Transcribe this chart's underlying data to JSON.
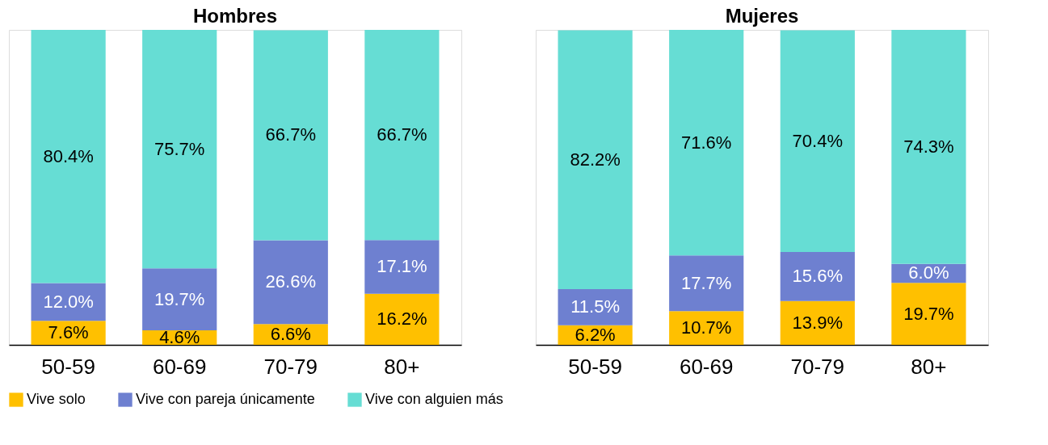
{
  "chart_data": [
    {
      "type": "bar",
      "title": "Hombres",
      "stacked": true,
      "legend": "bottom",
      "tick_labels": "x",
      "categories": [
        "50-59",
        "60-69",
        "70-79",
        "80+"
      ],
      "series": [
        {
          "name": "Vive solo",
          "color": "#ffc000",
          "values": [
            7.6,
            4.6,
            6.6,
            16.2
          ],
          "value_labels": [
            "7.6%",
            "4.6%",
            "6.6%",
            "16.2%"
          ]
        },
        {
          "name": "Vive con pareja únicamente",
          "color": "#6e80d0",
          "values": [
            12.0,
            19.7,
            26.6,
            17.1
          ],
          "value_labels": [
            "12.0%",
            "19.7%",
            "26.6%",
            "17.1%"
          ]
        },
        {
          "name": "Vive con alguien más",
          "color": "#66ddd4",
          "values": [
            80.4,
            75.7,
            66.7,
            66.7
          ],
          "value_labels": [
            "80.4%",
            "75.7%",
            "66.7%",
            "66.7%"
          ]
        }
      ]
    },
    {
      "type": "bar",
      "title": "Mujeres",
      "stacked": true,
      "legend": "bottom",
      "tick_labels": "x",
      "categories": [
        "50-59",
        "60-69",
        "70-79",
        "80+"
      ],
      "series": [
        {
          "name": "Vive solo",
          "color": "#ffc000",
          "values": [
            6.2,
            10.7,
            13.9,
            19.7
          ],
          "value_labels": [
            "6.2%",
            "10.7%",
            "13.9%",
            "19.7%"
          ]
        },
        {
          "name": "Vive con pareja únicamente",
          "color": "#6e80d0",
          "values": [
            11.5,
            17.7,
            15.6,
            6.0
          ],
          "value_labels": [
            "11.5%",
            "17.7%",
            "15.6%",
            "6.0%"
          ]
        },
        {
          "name": "Vive con alguien más",
          "color": "#66ddd4",
          "values": [
            82.2,
            71.6,
            70.4,
            74.3
          ],
          "value_labels": [
            "82.2%",
            "71.6%",
            "70.4%",
            "74.3%"
          ]
        }
      ]
    }
  ]
}
